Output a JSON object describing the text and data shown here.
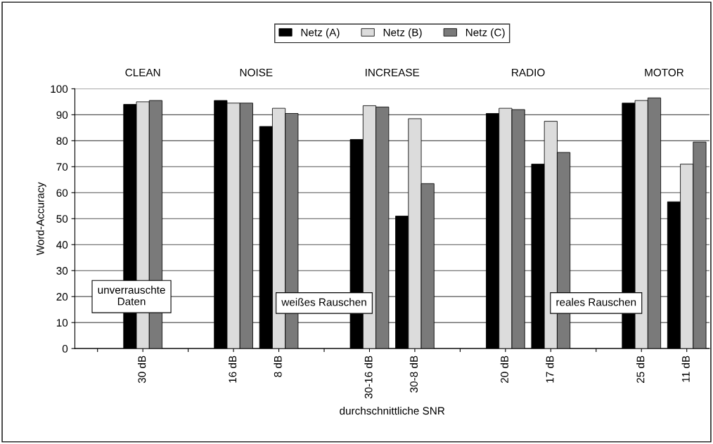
{
  "chart_data": {
    "type": "bar",
    "xlabel": "durchschnittliche SNR",
    "ylabel": "Word-Accuracy",
    "categories": [
      null,
      "30 dB",
      null,
      "16 dB",
      "8 dB",
      null,
      "30-16 dB",
      "30-8 dB",
      null,
      "20 dB",
      "17 dB",
      null,
      "25 dB",
      "11 dB"
    ],
    "series": [
      {
        "name": "Netz (A)",
        "color": "#000000",
        "values": [
          null,
          94,
          null,
          95.5,
          85.5,
          null,
          80.5,
          51,
          null,
          90.5,
          71,
          null,
          94.5,
          56.5
        ]
      },
      {
        "name": "Netz (B)",
        "color": "#dcdcdc",
        "values": [
          null,
          95,
          null,
          94.5,
          92.5,
          null,
          93.5,
          88.5,
          null,
          92.5,
          87.5,
          null,
          95.5,
          71
        ]
      },
      {
        "name": "Netz (C)",
        "color": "#7a7a7a",
        "values": [
          null,
          95.5,
          null,
          94.5,
          90.5,
          null,
          93,
          63.5,
          null,
          92,
          75.5,
          null,
          96.5,
          79.5
        ]
      }
    ],
    "ylim": [
      0,
      100
    ],
    "yticks": [
      0,
      10,
      20,
      30,
      40,
      50,
      60,
      70,
      80,
      90,
      100
    ],
    "grid": "y",
    "legend": "top",
    "annotations": [
      "CLEAN",
      "NOISE",
      "INCREASE",
      "RADIO",
      "MOTOR",
      "unverrauschte\nDaten",
      "weißes Rauschen",
      "reales Rauschen"
    ]
  }
}
